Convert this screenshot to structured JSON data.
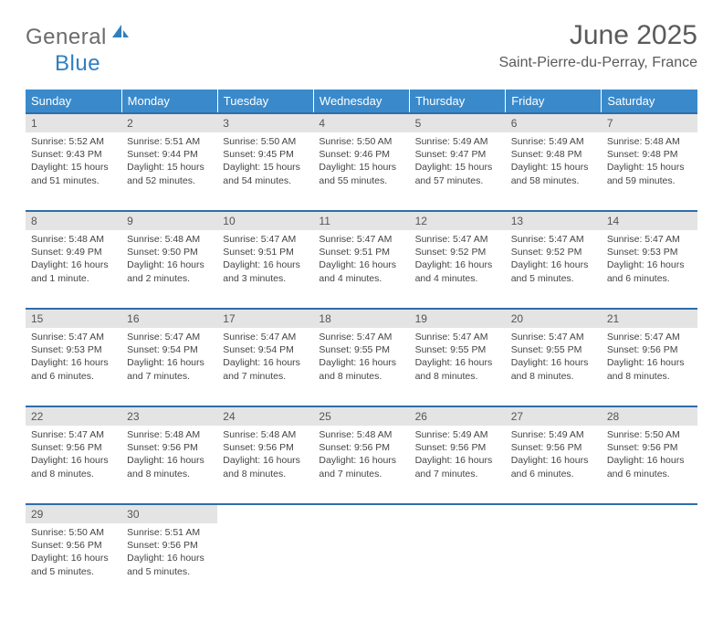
{
  "logo": {
    "part1": "General",
    "part2": "Blue"
  },
  "title": "June 2025",
  "subtitle": "Saint-Pierre-du-Perray, France",
  "colors": {
    "header_bg": "#3a8acb",
    "header_text": "#ffffff",
    "daynum_bg": "#e4e4e4",
    "row_border": "#2f6ea8",
    "logo_gray": "#6b6b6b",
    "logo_blue": "#2f7fc1",
    "body_text": "#444444"
  },
  "weekdays": [
    "Sunday",
    "Monday",
    "Tuesday",
    "Wednesday",
    "Thursday",
    "Friday",
    "Saturday"
  ],
  "weeks": [
    [
      {
        "n": "1",
        "sr": "5:52 AM",
        "ss": "9:43 PM",
        "dl": "15 hours and 51 minutes."
      },
      {
        "n": "2",
        "sr": "5:51 AM",
        "ss": "9:44 PM",
        "dl": "15 hours and 52 minutes."
      },
      {
        "n": "3",
        "sr": "5:50 AM",
        "ss": "9:45 PM",
        "dl": "15 hours and 54 minutes."
      },
      {
        "n": "4",
        "sr": "5:50 AM",
        "ss": "9:46 PM",
        "dl": "15 hours and 55 minutes."
      },
      {
        "n": "5",
        "sr": "5:49 AM",
        "ss": "9:47 PM",
        "dl": "15 hours and 57 minutes."
      },
      {
        "n": "6",
        "sr": "5:49 AM",
        "ss": "9:48 PM",
        "dl": "15 hours and 58 minutes."
      },
      {
        "n": "7",
        "sr": "5:48 AM",
        "ss": "9:48 PM",
        "dl": "15 hours and 59 minutes."
      }
    ],
    [
      {
        "n": "8",
        "sr": "5:48 AM",
        "ss": "9:49 PM",
        "dl": "16 hours and 1 minute."
      },
      {
        "n": "9",
        "sr": "5:48 AM",
        "ss": "9:50 PM",
        "dl": "16 hours and 2 minutes."
      },
      {
        "n": "10",
        "sr": "5:47 AM",
        "ss": "9:51 PM",
        "dl": "16 hours and 3 minutes."
      },
      {
        "n": "11",
        "sr": "5:47 AM",
        "ss": "9:51 PM",
        "dl": "16 hours and 4 minutes."
      },
      {
        "n": "12",
        "sr": "5:47 AM",
        "ss": "9:52 PM",
        "dl": "16 hours and 4 minutes."
      },
      {
        "n": "13",
        "sr": "5:47 AM",
        "ss": "9:52 PM",
        "dl": "16 hours and 5 minutes."
      },
      {
        "n": "14",
        "sr": "5:47 AM",
        "ss": "9:53 PM",
        "dl": "16 hours and 6 minutes."
      }
    ],
    [
      {
        "n": "15",
        "sr": "5:47 AM",
        "ss": "9:53 PM",
        "dl": "16 hours and 6 minutes."
      },
      {
        "n": "16",
        "sr": "5:47 AM",
        "ss": "9:54 PM",
        "dl": "16 hours and 7 minutes."
      },
      {
        "n": "17",
        "sr": "5:47 AM",
        "ss": "9:54 PM",
        "dl": "16 hours and 7 minutes."
      },
      {
        "n": "18",
        "sr": "5:47 AM",
        "ss": "9:55 PM",
        "dl": "16 hours and 8 minutes."
      },
      {
        "n": "19",
        "sr": "5:47 AM",
        "ss": "9:55 PM",
        "dl": "16 hours and 8 minutes."
      },
      {
        "n": "20",
        "sr": "5:47 AM",
        "ss": "9:55 PM",
        "dl": "16 hours and 8 minutes."
      },
      {
        "n": "21",
        "sr": "5:47 AM",
        "ss": "9:56 PM",
        "dl": "16 hours and 8 minutes."
      }
    ],
    [
      {
        "n": "22",
        "sr": "5:47 AM",
        "ss": "9:56 PM",
        "dl": "16 hours and 8 minutes."
      },
      {
        "n": "23",
        "sr": "5:48 AM",
        "ss": "9:56 PM",
        "dl": "16 hours and 8 minutes."
      },
      {
        "n": "24",
        "sr": "5:48 AM",
        "ss": "9:56 PM",
        "dl": "16 hours and 8 minutes."
      },
      {
        "n": "25",
        "sr": "5:48 AM",
        "ss": "9:56 PM",
        "dl": "16 hours and 7 minutes."
      },
      {
        "n": "26",
        "sr": "5:49 AM",
        "ss": "9:56 PM",
        "dl": "16 hours and 7 minutes."
      },
      {
        "n": "27",
        "sr": "5:49 AM",
        "ss": "9:56 PM",
        "dl": "16 hours and 6 minutes."
      },
      {
        "n": "28",
        "sr": "5:50 AM",
        "ss": "9:56 PM",
        "dl": "16 hours and 6 minutes."
      }
    ],
    [
      {
        "n": "29",
        "sr": "5:50 AM",
        "ss": "9:56 PM",
        "dl": "16 hours and 5 minutes."
      },
      {
        "n": "30",
        "sr": "5:51 AM",
        "ss": "9:56 PM",
        "dl": "16 hours and 5 minutes."
      },
      null,
      null,
      null,
      null,
      null
    ]
  ],
  "labels": {
    "sunrise": "Sunrise:",
    "sunset": "Sunset:",
    "daylight": "Daylight:"
  }
}
